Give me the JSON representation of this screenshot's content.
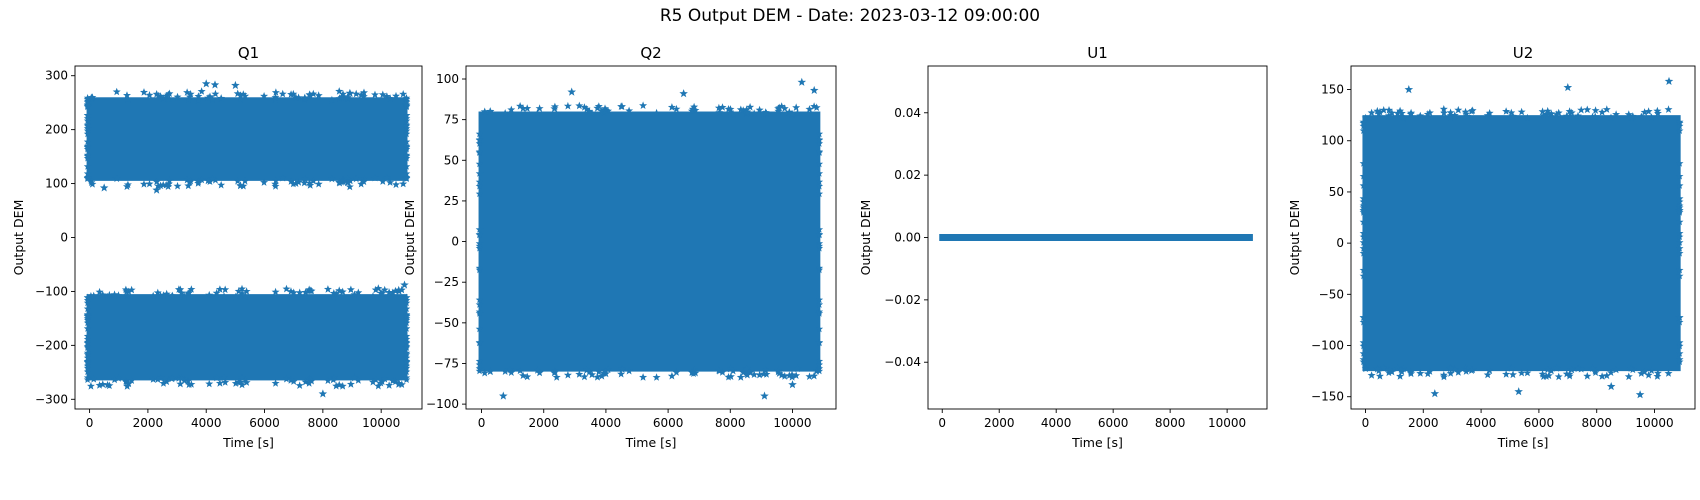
{
  "figure": {
    "title": "R5 Output DEM - Date: 2023-03-12 09:00:00",
    "marker_color": "#1f77b4",
    "marker": "star"
  },
  "chart_data": [
    {
      "type": "scatter",
      "title": "Q1",
      "xlabel": "Time [s]",
      "ylabel": "Output DEM",
      "xlim": [
        -500,
        11400
      ],
      "ylim": [
        -318,
        318
      ],
      "xticks": [
        0,
        2000,
        4000,
        6000,
        8000,
        10000
      ],
      "yticks": [
        -300,
        -200,
        -100,
        0,
        100,
        200,
        300
      ],
      "yticklabels": [
        "−300",
        "−200",
        "−100",
        "0",
        "100",
        "200",
        "300"
      ],
      "x_range": [
        0,
        10800
      ],
      "bands": [
        [
          105,
          260
        ],
        [
          -265,
          -105
        ]
      ],
      "outliers": [
        [
          4000,
          285
        ],
        [
          4300,
          283
        ],
        [
          5000,
          282
        ],
        [
          8000,
          -290
        ],
        [
          10800,
          -88
        ],
        [
          500,
          92
        ],
        [
          2300,
          88
        ]
      ]
    },
    {
      "type": "scatter",
      "title": "Q2",
      "xlabel": "Time [s]",
      "ylabel": "Output DEM",
      "xlim": [
        -500,
        11400
      ],
      "ylim": [
        -103,
        108
      ],
      "xticks": [
        0,
        2000,
        4000,
        6000,
        8000,
        10000
      ],
      "yticks": [
        -100,
        -75,
        -50,
        -25,
        0,
        25,
        50,
        75,
        100
      ],
      "yticklabels": [
        "−100",
        "−75",
        "−50",
        "−25",
        "0",
        "25",
        "50",
        "75",
        "100"
      ],
      "x_range": [
        0,
        10800
      ],
      "bands": [
        [
          -80,
          80
        ]
      ],
      "outliers": [
        [
          10300,
          98
        ],
        [
          10700,
          93
        ],
        [
          9100,
          -95
        ],
        [
          700,
          -95
        ],
        [
          2900,
          92
        ],
        [
          6500,
          91
        ],
        [
          10000,
          -88
        ]
      ]
    },
    {
      "type": "scatter",
      "title": "U1",
      "xlabel": "Time [s]",
      "ylabel": "Output DEM",
      "xlim": [
        -500,
        11400
      ],
      "ylim": [
        -0.055,
        0.055
      ],
      "xticks": [
        0,
        2000,
        4000,
        6000,
        8000,
        10000
      ],
      "yticks": [
        -0.04,
        -0.02,
        0.0,
        0.02,
        0.04
      ],
      "yticklabels": [
        "−0.04",
        "−0.02",
        "0.00",
        "0.02",
        "0.04"
      ],
      "x_range": [
        0,
        10800
      ],
      "bands": [
        [
          0,
          0
        ]
      ],
      "outliers": []
    },
    {
      "type": "scatter",
      "title": "U2",
      "xlabel": "Time [s]",
      "ylabel": "Output DEM",
      "xlim": [
        -500,
        11400
      ],
      "ylim": [
        -162,
        173
      ],
      "xticks": [
        0,
        2000,
        4000,
        6000,
        8000,
        10000
      ],
      "yticks": [
        -150,
        -100,
        -50,
        0,
        50,
        100,
        150
      ],
      "yticklabels": [
        "−150",
        "−100",
        "−50",
        "0",
        "50",
        "100",
        "150"
      ],
      "x_range": [
        0,
        10800
      ],
      "bands": [
        [
          -125,
          125
        ]
      ],
      "outliers": [
        [
          10500,
          158
        ],
        [
          1500,
          150
        ],
        [
          7000,
          152
        ],
        [
          2400,
          -147
        ],
        [
          9500,
          -148
        ],
        [
          5300,
          -145
        ],
        [
          8500,
          -140
        ]
      ]
    }
  ]
}
